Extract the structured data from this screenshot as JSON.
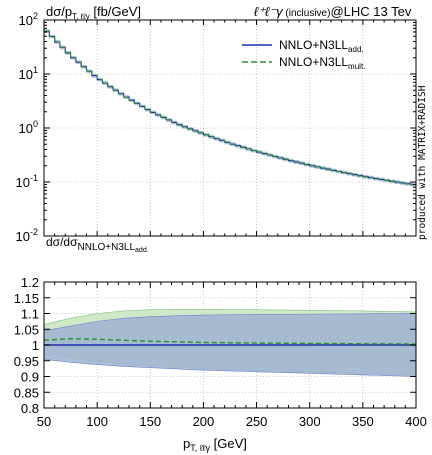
{
  "header": {
    "ylabel_top_main": "dσ/p",
    "ylabel_top_sub": "T, ℓℓγ",
    "ylabel_top_unit": " [fb/GeV]",
    "title_main": "ℓ⁺ℓ⁻γ",
    "title_small": " (inclusive)",
    "title_tail": "@LHC 13 Tev"
  },
  "ratio_label": {
    "main": "dσ/dσ",
    "sub": "NNLO+N3LL",
    "subsub": "add."
  },
  "xaxis": {
    "label_main": "p",
    "label_sub": "T, ℓℓγ",
    "label_unit": " [GeV]"
  },
  "side_text": "produced with MATRIX+RADISH",
  "colors": {
    "add": "#1f2fb0",
    "mult": "#2e8b2e",
    "band_add": "#9fb3d2",
    "band_mult": "#c8e6c0",
    "grid": "#bbbbbb"
  },
  "chart_data": [
    {
      "type": "line",
      "panel": "main",
      "yscale": "log",
      "xlim": [
        50,
        400
      ],
      "ylim": [
        0.01,
        100
      ],
      "x_ticks": [
        50,
        100,
        150,
        200,
        250,
        300,
        350,
        400
      ],
      "y_ticks": [
        "10^-2",
        "10^-1",
        "10^0",
        "10^1",
        "10^2"
      ],
      "x": [
        50,
        75,
        100,
        125,
        150,
        175,
        200,
        225,
        250,
        275,
        300,
        325,
        350,
        375,
        400
      ],
      "series": [
        {
          "name": "NNLO+N3LL",
          "name_sub": "add.",
          "style": "solid",
          "color": "#1f2fb0",
          "values": [
            70,
            22,
            8.5,
            4.0,
            2.05,
            1.2,
            0.78,
            0.52,
            0.37,
            0.27,
            0.205,
            0.16,
            0.128,
            0.105,
            0.088
          ]
        },
        {
          "name": "NNLO+N3LL",
          "name_sub": "mult.",
          "style": "dashed",
          "color": "#2e8b2e",
          "values": [
            70,
            22,
            8.5,
            4.0,
            2.05,
            1.2,
            0.78,
            0.52,
            0.37,
            0.27,
            0.205,
            0.16,
            0.128,
            0.105,
            0.088
          ]
        }
      ],
      "grid": true,
      "legend": "top-right"
    },
    {
      "type": "area",
      "panel": "ratio",
      "xlim": [
        50,
        400
      ],
      "ylim": [
        0.8,
        1.2
      ],
      "x_ticks": [
        50,
        100,
        150,
        200,
        250,
        300,
        350,
        400
      ],
      "y_ticks": [
        0.8,
        0.85,
        0.9,
        0.95,
        1,
        1.05,
        1.1,
        1.15,
        1.2
      ],
      "x": [
        50,
        75,
        100,
        125,
        150,
        175,
        200,
        250,
        300,
        350,
        400
      ],
      "series": [
        {
          "name": "add. band",
          "lower": [
            0.955,
            0.945,
            0.938,
            0.932,
            0.928,
            0.924,
            0.92,
            0.915,
            0.91,
            0.905,
            0.9
          ],
          "upper": [
            1.045,
            1.06,
            1.075,
            1.085,
            1.09,
            1.093,
            1.095,
            1.097,
            1.098,
            1.099,
            1.1
          ]
        },
        {
          "name": "mult. band",
          "lower": [
            0.975,
            0.96,
            0.948,
            0.94,
            0.935,
            0.93,
            0.926,
            0.92,
            0.915,
            0.91,
            0.905
          ],
          "upper": [
            1.065,
            1.085,
            1.1,
            1.108,
            1.112,
            1.113,
            1.113,
            1.112,
            1.11,
            1.108,
            1.105
          ]
        },
        {
          "name": "add. central",
          "values": [
            1,
            1,
            1,
            1,
            1,
            1,
            1,
            1,
            1,
            1,
            1
          ]
        },
        {
          "name": "mult. central",
          "values": [
            1.015,
            1.02,
            1.018,
            1.015,
            1.012,
            1.01,
            1.008,
            1.006,
            1.005,
            1.004,
            1.003
          ]
        }
      ],
      "grid": true
    }
  ]
}
